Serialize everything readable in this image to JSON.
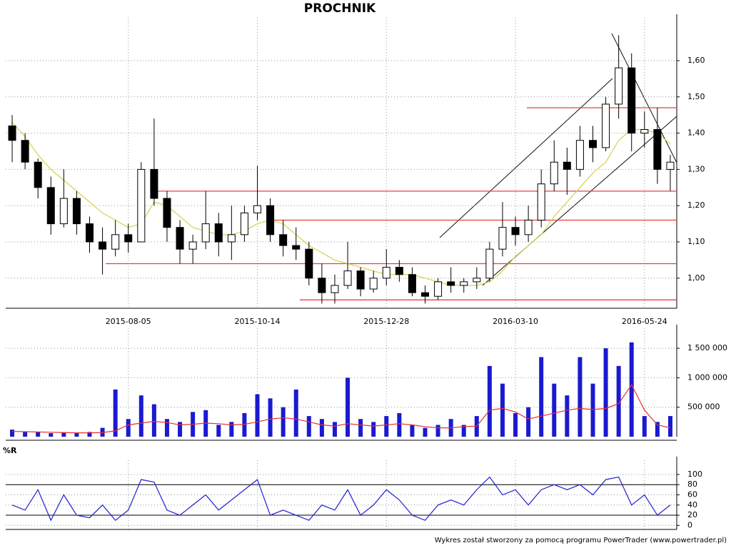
{
  "chart_data": [
    {
      "type": "candlestick",
      "title": "PROCHNIK",
      "categories": [
        null,
        null,
        null,
        null,
        null,
        null,
        null,
        null,
        null,
        "2015-08-05",
        null,
        null,
        null,
        null,
        null,
        null,
        null,
        null,
        null,
        "2015-10-14",
        null,
        null,
        null,
        null,
        null,
        null,
        null,
        null,
        null,
        "2015-12-28",
        null,
        null,
        null,
        null,
        null,
        null,
        null,
        null,
        null,
        "2016-03-10",
        null,
        null,
        null,
        null,
        null,
        null,
        null,
        null,
        null,
        "2016-05-24",
        null,
        null
      ],
      "open": [
        1.42,
        1.38,
        1.32,
        1.25,
        1.15,
        1.22,
        1.15,
        1.1,
        1.08,
        1.12,
        1.1,
        1.3,
        1.22,
        1.14,
        1.08,
        1.1,
        1.15,
        1.1,
        1.12,
        1.18,
        1.2,
        1.12,
        1.09,
        1.08,
        1.0,
        0.96,
        0.98,
        1.02,
        0.97,
        1.0,
        1.03,
        1.01,
        0.96,
        0.95,
        0.99,
        0.98,
        0.99,
        1.0,
        1.08,
        1.14,
        1.12,
        1.16,
        1.26,
        1.32,
        1.3,
        1.38,
        1.36,
        1.48,
        1.58,
        1.4,
        1.41,
        1.3
      ],
      "high": [
        1.45,
        1.4,
        1.33,
        1.28,
        1.3,
        1.24,
        1.17,
        1.14,
        1.16,
        1.15,
        1.32,
        1.44,
        1.24,
        1.16,
        1.12,
        1.24,
        1.18,
        1.2,
        1.2,
        1.31,
        1.22,
        1.16,
        1.14,
        1.1,
        1.04,
        1.01,
        1.1,
        1.03,
        1.02,
        1.08,
        1.05,
        1.03,
        0.98,
        1.0,
        1.03,
        1.0,
        1.03,
        1.1,
        1.21,
        1.17,
        1.2,
        1.3,
        1.38,
        1.36,
        1.42,
        1.42,
        1.5,
        1.67,
        1.62,
        1.46,
        1.47,
        1.34
      ],
      "low": [
        1.32,
        1.3,
        1.22,
        1.12,
        1.14,
        1.12,
        1.07,
        1.01,
        1.06,
        1.07,
        1.1,
        1.2,
        1.1,
        1.04,
        1.04,
        1.08,
        1.06,
        1.05,
        1.1,
        1.16,
        1.1,
        1.06,
        1.05,
        0.98,
        0.93,
        0.93,
        0.97,
        0.95,
        0.96,
        0.98,
        0.99,
        0.95,
        0.93,
        0.94,
        0.96,
        0.96,
        0.97,
        0.99,
        1.06,
        1.09,
        1.1,
        1.14,
        1.24,
        1.23,
        1.28,
        1.32,
        1.35,
        1.44,
        1.35,
        1.36,
        1.26,
        1.24
      ],
      "close": [
        1.38,
        1.32,
        1.25,
        1.15,
        1.22,
        1.15,
        1.1,
        1.08,
        1.12,
        1.1,
        1.3,
        1.22,
        1.14,
        1.08,
        1.1,
        1.15,
        1.1,
        1.12,
        1.18,
        1.2,
        1.12,
        1.09,
        1.08,
        1.0,
        0.96,
        0.98,
        1.02,
        0.97,
        1.0,
        1.03,
        1.01,
        0.96,
        0.95,
        0.99,
        0.98,
        0.99,
        1.0,
        1.08,
        1.14,
        1.12,
        1.16,
        1.26,
        1.32,
        1.3,
        1.38,
        1.36,
        1.48,
        1.58,
        1.4,
        1.41,
        1.3,
        1.32
      ],
      "ma": {
        "color": "#d8d050",
        "values": [
          1.43,
          1.39,
          1.34,
          1.3,
          1.27,
          1.24,
          1.21,
          1.18,
          1.16,
          1.14,
          1.15,
          1.21,
          1.2,
          1.17,
          1.14,
          1.13,
          1.12,
          1.12,
          1.13,
          1.15,
          1.16,
          1.15,
          1.12,
          1.09,
          1.07,
          1.05,
          1.04,
          1.03,
          1.02,
          1.01,
          1.01,
          1.01,
          1.0,
          0.99,
          0.98,
          0.98,
          0.98,
          0.99,
          1.02,
          1.06,
          1.09,
          1.12,
          1.17,
          1.21,
          1.25,
          1.29,
          1.32,
          1.38,
          1.41,
          1.41,
          1.4,
          1.37
        ]
      },
      "levels": {
        "color": "#e84040",
        "values": [
          1.47,
          1.24,
          1.16,
          1.04,
          0.94
        ]
      },
      "ylim": [
        0.917,
        1.718
      ],
      "yticks": [
        {
          "value": 1.0,
          "label": "1,00"
        },
        {
          "value": 1.1,
          "label": "1,10"
        },
        {
          "value": 1.2,
          "label": "1,20"
        },
        {
          "value": 1.3,
          "label": "1,30"
        },
        {
          "value": 1.4,
          "label": "1,40"
        },
        {
          "value": 1.5,
          "label": "1,50"
        },
        {
          "value": 1.6,
          "label": "1,60"
        }
      ],
      "grid": true
    },
    {
      "type": "bar",
      "color": "#1a1ad0",
      "values": [
        120000,
        90000,
        80000,
        60000,
        70000,
        60000,
        80000,
        150000,
        800000,
        300000,
        700000,
        550000,
        300000,
        250000,
        420000,
        450000,
        200000,
        250000,
        400000,
        720000,
        650000,
        500000,
        800000,
        350000,
        300000,
        250000,
        1000000,
        300000,
        250000,
        350000,
        400000,
        200000,
        150000,
        200000,
        300000,
        200000,
        350000,
        1200000,
        900000,
        400000,
        500000,
        1350000,
        900000,
        700000,
        1350000,
        900000,
        1500000,
        1200000,
        1600000,
        350000,
        250000,
        350000
      ],
      "ma": {
        "color": "#e83030",
        "values": [
          90000,
          85000,
          80000,
          75000,
          70000,
          65000,
          65000,
          70000,
          100000,
          200000,
          230000,
          260000,
          240000,
          200000,
          210000,
          230000,
          220000,
          200000,
          210000,
          250000,
          300000,
          320000,
          300000,
          250000,
          200000,
          180000,
          220000,
          200000,
          180000,
          200000,
          220000,
          200000,
          170000,
          150000,
          150000,
          170000,
          180000,
          450000,
          480000,
          420000,
          300000,
          350000,
          400000,
          450000,
          480000,
          460000,
          480000,
          560000,
          880000,
          450000,
          200000,
          150000
        ]
      },
      "ylim": [
        0,
        1840000
      ],
      "yticks": [
        {
          "value": 500000,
          "label": "500 000"
        },
        {
          "value": 1000000,
          "label": "1 000 000"
        },
        {
          "value": 1500000,
          "label": "1 500 000"
        }
      ],
      "grid": true
    },
    {
      "type": "line",
      "title": "%R",
      "color": "#2020d0",
      "values": [
        40,
        30,
        70,
        10,
        60,
        20,
        15,
        40,
        10,
        30,
        90,
        85,
        30,
        20,
        40,
        60,
        30,
        50,
        70,
        90,
        20,
        30,
        20,
        10,
        40,
        30,
        70,
        20,
        40,
        70,
        50,
        20,
        10,
        40,
        50,
        40,
        70,
        95,
        60,
        70,
        40,
        70,
        80,
        70,
        80,
        60,
        90,
        95,
        40,
        60,
        20,
        40
      ],
      "levels": [
        20,
        80
      ],
      "ylim": [
        -8,
        128
      ],
      "yticks": [
        0,
        20,
        40,
        60,
        80,
        100
      ],
      "grid": true
    }
  ],
  "footer": "Wykres został stworzony za pomocą programu PowerTrader (www.powertrader.pl)"
}
